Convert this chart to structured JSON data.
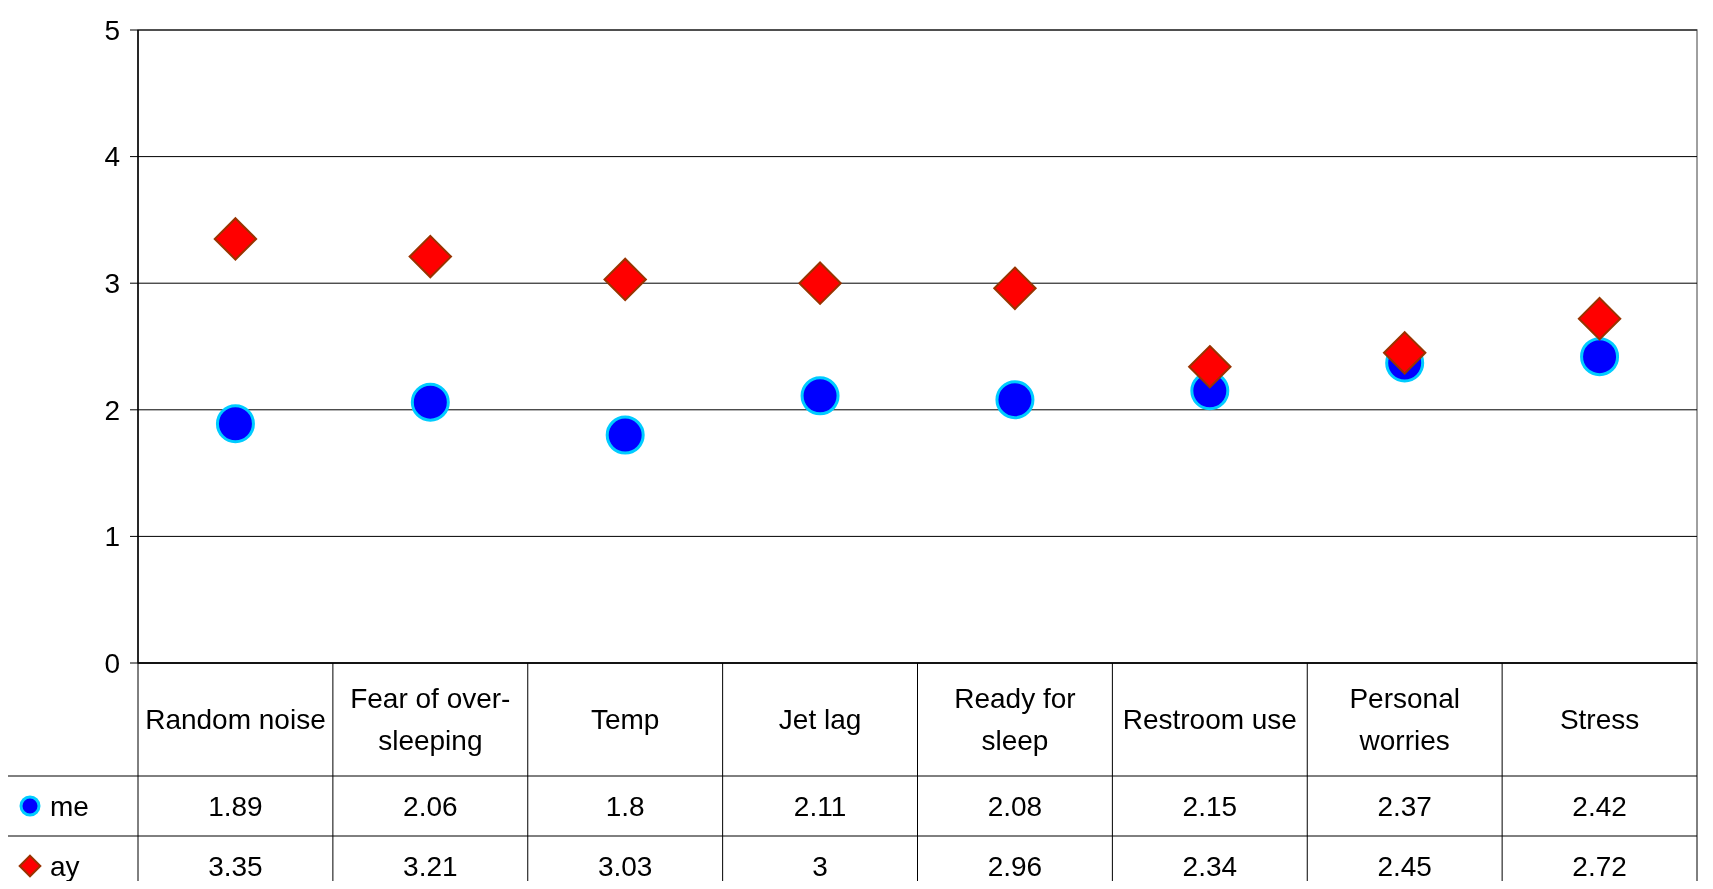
{
  "chart_data": {
    "type": "scatter",
    "categories": [
      "Random noise",
      "Fear of over-sleeping",
      "Temp",
      "Jet lag",
      "Ready for sleep",
      "Restroom use",
      "Personal worries",
      "Stress"
    ],
    "series": [
      {
        "name": "me",
        "color": "#0000ff",
        "marker": "circle",
        "values": [
          1.89,
          2.06,
          1.8,
          2.11,
          2.08,
          2.15,
          2.37,
          2.42
        ]
      },
      {
        "name": "ay",
        "color": "#ff0000",
        "marker": "diamond",
        "values": [
          3.35,
          3.21,
          3.03,
          3,
          2.96,
          2.34,
          2.45,
          2.72
        ]
      }
    ],
    "ylim": [
      0,
      5
    ],
    "yticks": [
      0,
      1,
      2,
      3,
      4,
      5
    ],
    "grid": "y",
    "data_labels": true,
    "legend": "bottom"
  }
}
